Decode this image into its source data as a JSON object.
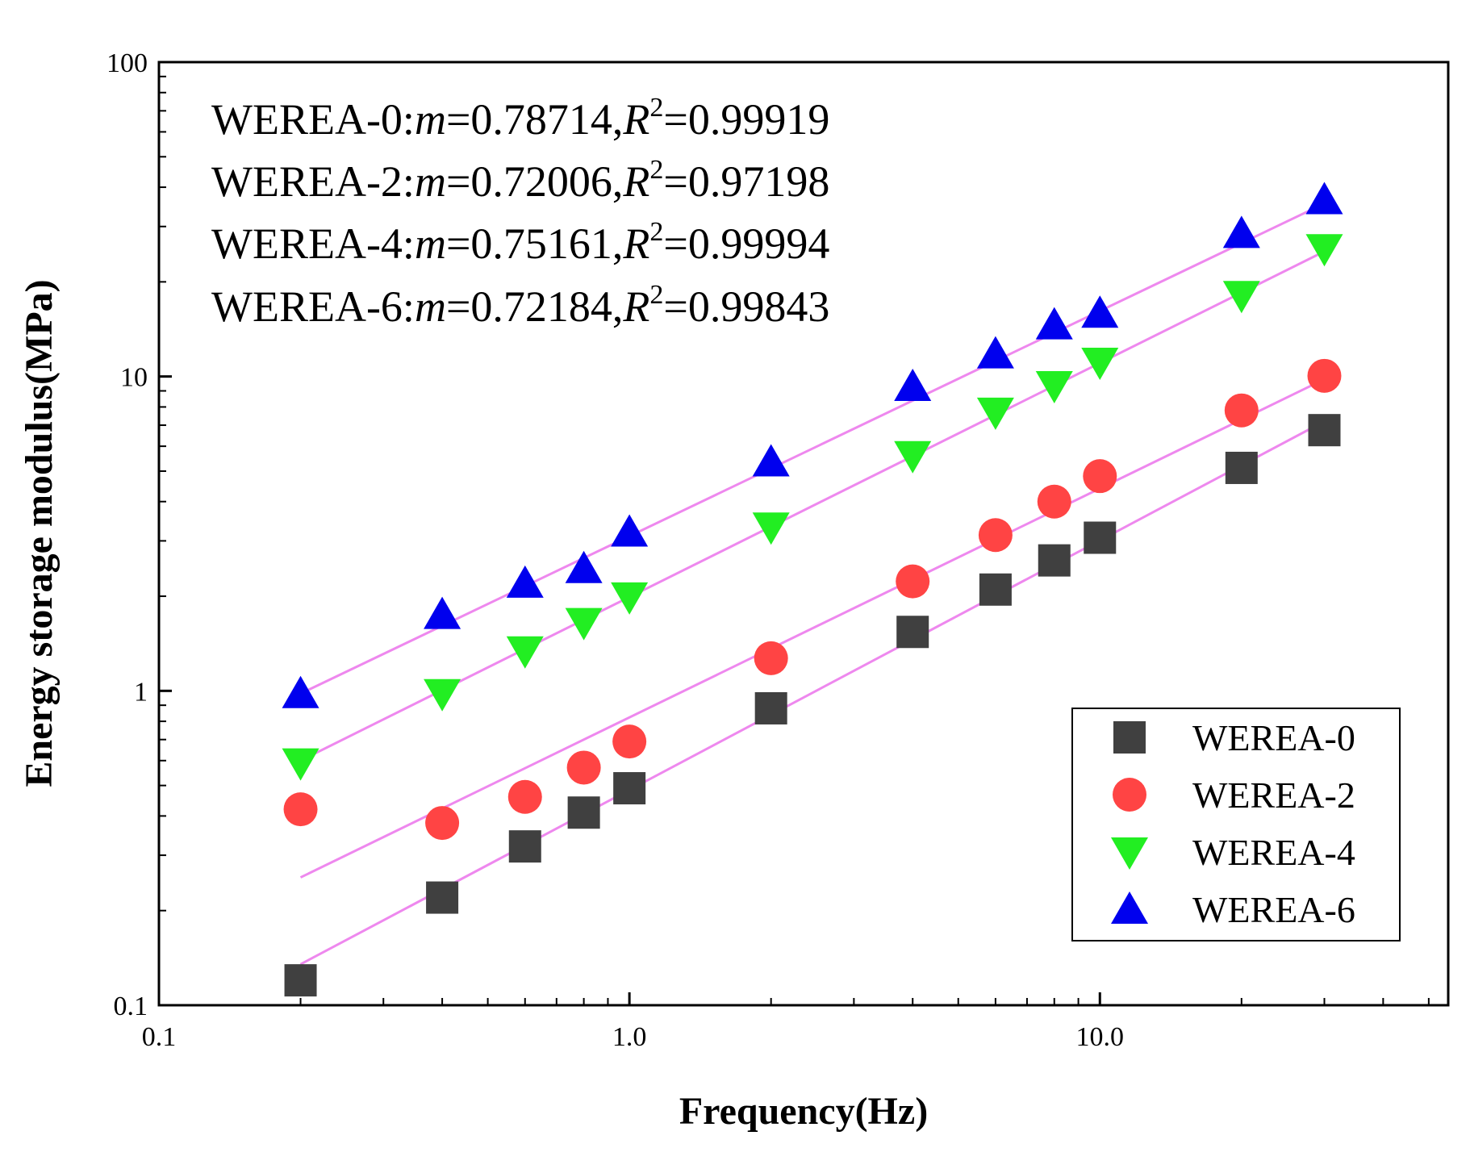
{
  "chart_data": {
    "type": "scatter",
    "title": "",
    "xlabel": "Frequency(Hz)",
    "ylabel": "Energy storage modulus(MPa)",
    "xscale": "log",
    "yscale": "log",
    "xlim": [
      0.1,
      55
    ],
    "ylim": [
      0.1,
      100
    ],
    "xticks": [
      {
        "value": 0.1,
        "label": "0.1"
      },
      {
        "value": 1,
        "label": "1.0"
      },
      {
        "value": 10,
        "label": "10.0"
      }
    ],
    "yticks": [
      {
        "value": 0.1,
        "label": "0.1"
      },
      {
        "value": 1,
        "label": "1"
      },
      {
        "value": 10,
        "label": "10"
      },
      {
        "value": 100,
        "label": "100"
      }
    ],
    "x": [
      0.2,
      0.4,
      0.6,
      0.8,
      1,
      2,
      4,
      6,
      8,
      10,
      20,
      30
    ],
    "series": [
      {
        "name": "WEREA-0",
        "marker": "square",
        "color": "#404040",
        "values": [
          0.12,
          0.22,
          0.32,
          0.41,
          0.49,
          0.88,
          1.54,
          2.1,
          2.6,
          3.07,
          5.12,
          6.75
        ],
        "fit_x": [
          0.2,
          30
        ],
        "fit_y": [
          0.135,
          7.2
        ]
      },
      {
        "name": "WEREA-2",
        "marker": "circle",
        "color": "#ff4444",
        "values": [
          0.42,
          0.38,
          0.46,
          0.57,
          0.69,
          1.27,
          2.23,
          3.13,
          4.0,
          4.82,
          7.8,
          10.05
        ],
        "fit_x": [
          0.2,
          30
        ],
        "fit_y": [
          0.255,
          9.8
        ]
      },
      {
        "name": "WEREA-4",
        "marker": "triangle-down",
        "color": "#22ee22",
        "values": [
          0.59,
          0.98,
          1.34,
          1.65,
          1.99,
          3.32,
          5.6,
          7.7,
          9.35,
          11.1,
          18.1,
          25.5
        ],
        "fit_x": [
          0.2,
          30
        ],
        "fit_y": [
          0.6,
          25.0
        ]
      },
      {
        "name": "WEREA-6",
        "marker": "triangle-up",
        "color": "#0000ee",
        "values": [
          0.98,
          1.75,
          2.2,
          2.45,
          3.2,
          5.35,
          9.3,
          11.8,
          14.6,
          15.9,
          28.5,
          36.5
        ],
        "fit_x": [
          0.2,
          30
        ],
        "fit_y": [
          0.98,
          35.5
        ]
      }
    ],
    "fit_color": "#ee88ee",
    "annotations": [
      {
        "series": "WEREA-0",
        "label": "WEREA-0:",
        "m_symbol": "m",
        "m": "=0.78714,",
        "r_symbol": "R",
        "r_exp": "2",
        "r2": "=0.99919"
      },
      {
        "series": "WEREA-2",
        "label": "WEREA-2:",
        "m_symbol": "m",
        "m": "=0.72006,",
        "r_symbol": "R",
        "r_exp": "2",
        "r2": "=0.97198"
      },
      {
        "series": "WEREA-4",
        "label": "WEREA-4:",
        "m_symbol": "m",
        "m": "=0.75161,",
        "r_symbol": "R",
        "r_exp": "2",
        "r2": "=0.99994"
      },
      {
        "series": "WEREA-6",
        "label": "WEREA-6:",
        "m_symbol": "m",
        "m": "=0.72184,",
        "r_symbol": "R",
        "r_exp": "2",
        "r2": "=0.99843"
      }
    ],
    "legend": {
      "position": "lower-right",
      "entries": [
        "WEREA-0",
        "WEREA-2",
        "WEREA-4",
        "WEREA-6"
      ]
    },
    "grid": false
  }
}
